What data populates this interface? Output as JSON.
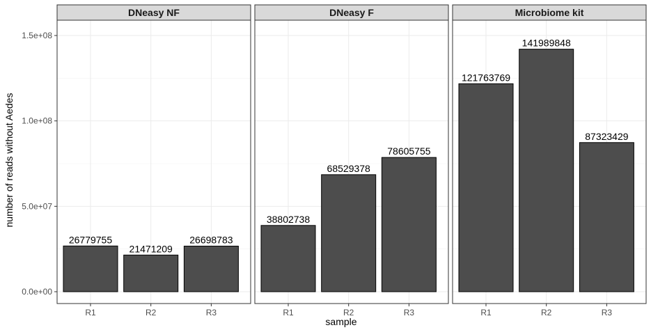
{
  "chart_data": {
    "type": "bar",
    "xlabel": "sample",
    "ylabel": "number of reads without Aedes",
    "ylim": [
      0,
      160000000
    ],
    "yticks": [
      0,
      50000000,
      100000000,
      150000000
    ],
    "ytick_labels": [
      "0.0e+00",
      "5.0e+07",
      "1.0e+08",
      "1.5e+08"
    ],
    "grid": true,
    "bar_color": "#4d4d4d",
    "categories": [
      "R1",
      "R2",
      "R3"
    ],
    "panels": [
      {
        "title": "DNeasy NF",
        "values": [
          26779755,
          21471209,
          26698783
        ],
        "labels": [
          "26779755",
          "21471209",
          "26698783"
        ]
      },
      {
        "title": "DNeasy F",
        "values": [
          38802738,
          68529378,
          78605755
        ],
        "labels": [
          "38802738",
          "68529378",
          "78605755"
        ]
      },
      {
        "title": "Microbiome kit",
        "values": [
          121763769,
          141989848,
          87323429
        ],
        "labels": [
          "121763769",
          "141989848",
          "87323429"
        ]
      }
    ]
  }
}
